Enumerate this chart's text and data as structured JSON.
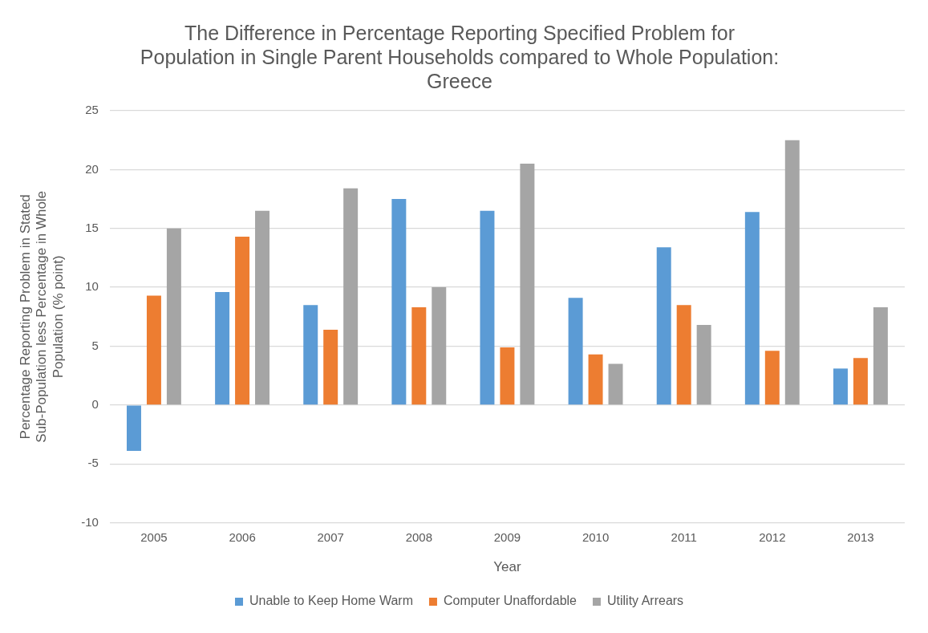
{
  "chart_data": {
    "type": "bar",
    "title": "The Difference in Percentage Reporting Specified Problem for Population in Single Parent Households compared to Whole Population: Greece",
    "xlabel": "Year",
    "ylabel": "Percentage Reporting Problem in Stated Sub-Population less Percentage in Whole Population (% point)",
    "categories": [
      "2005",
      "2006",
      "2007",
      "2008",
      "2009",
      "2010",
      "2011",
      "2012",
      "2013"
    ],
    "series": [
      {
        "name": "Unable to Keep Home Warm",
        "color": "#5b9bd5",
        "values": [
          -3.9,
          9.6,
          8.5,
          17.5,
          16.5,
          9.1,
          13.4,
          16.4,
          3.1
        ]
      },
      {
        "name": "Computer Unaffordable",
        "color": "#ed7d31",
        "values": [
          9.3,
          14.3,
          6.4,
          8.3,
          4.9,
          4.3,
          8.5,
          4.6,
          4.0
        ]
      },
      {
        "name": "Utility Arrears",
        "color": "#a5a5a5",
        "values": [
          15.0,
          16.5,
          18.4,
          10.0,
          20.5,
          3.5,
          6.8,
          22.5,
          8.3
        ]
      }
    ],
    "ylim": [
      -10,
      25
    ],
    "yticks": [
      -10,
      -5,
      0,
      5,
      10,
      15,
      20,
      25
    ],
    "grid": "y",
    "legend": "bottom"
  }
}
